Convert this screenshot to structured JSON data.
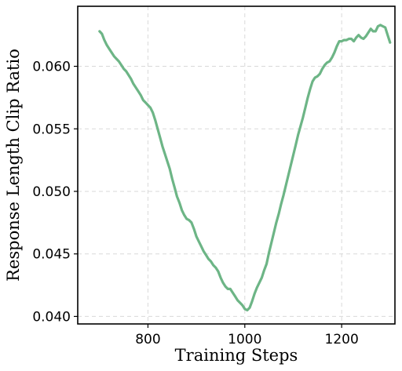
{
  "chart_data": {
    "type": "line",
    "title": "",
    "xlabel": "Training Steps",
    "ylabel": "Response Length Clip Ratio",
    "xlim": [
      655,
      1310
    ],
    "ylim": [
      0.0394,
      0.0648
    ],
    "xticks": [
      800,
      1000,
      1200
    ],
    "yticks": [
      0.04,
      0.045,
      0.05,
      0.055,
      0.06
    ],
    "xtick_labels": [
      "800",
      "1000",
      "1200"
    ],
    "ytick_labels": [
      "0.040",
      "0.045",
      "0.050",
      "0.055",
      "0.060"
    ],
    "grid": true,
    "color": "#6db586",
    "series": [
      {
        "name": "",
        "x": [
          700,
          705,
          710,
          715,
          720,
          725,
          730,
          735,
          740,
          745,
          750,
          755,
          760,
          765,
          770,
          775,
          780,
          785,
          790,
          795,
          800,
          805,
          810,
          815,
          820,
          825,
          830,
          835,
          840,
          845,
          850,
          855,
          860,
          865,
          870,
          875,
          880,
          885,
          890,
          895,
          900,
          905,
          910,
          915,
          920,
          925,
          930,
          935,
          940,
          945,
          950,
          955,
          960,
          965,
          970,
          975,
          980,
          985,
          990,
          995,
          1000,
          1005,
          1010,
          1015,
          1020,
          1025,
          1030,
          1035,
          1040,
          1045,
          1050,
          1055,
          1060,
          1065,
          1070,
          1075,
          1080,
          1085,
          1090,
          1095,
          1100,
          1105,
          1110,
          1115,
          1120,
          1125,
          1130,
          1135,
          1140,
          1145,
          1150,
          1155,
          1160,
          1165,
          1170,
          1175,
          1180,
          1185,
          1190,
          1195,
          1200,
          1205,
          1210,
          1215,
          1220,
          1225,
          1230,
          1235,
          1240,
          1245,
          1250,
          1255,
          1260,
          1265,
          1270,
          1275,
          1280,
          1285,
          1290,
          1295,
          1300
        ],
        "y": [
          0.0628,
          0.0626,
          0.0621,
          0.0617,
          0.0614,
          0.0611,
          0.0608,
          0.0606,
          0.0604,
          0.0601,
          0.0598,
          0.0596,
          0.0593,
          0.059,
          0.0586,
          0.0583,
          0.058,
          0.0577,
          0.0573,
          0.0571,
          0.0569,
          0.0567,
          0.0563,
          0.0557,
          0.055,
          0.0543,
          0.0536,
          0.053,
          0.0524,
          0.0518,
          0.051,
          0.0503,
          0.0496,
          0.0491,
          0.0485,
          0.0481,
          0.0478,
          0.0477,
          0.0475,
          0.047,
          0.0464,
          0.046,
          0.0456,
          0.0452,
          0.0449,
          0.0446,
          0.0444,
          0.0441,
          0.0439,
          0.0436,
          0.0431,
          0.0427,
          0.0424,
          0.0422,
          0.0422,
          0.0419,
          0.0416,
          0.0413,
          0.0411,
          0.0409,
          0.0406,
          0.0405,
          0.0407,
          0.0412,
          0.0418,
          0.0423,
          0.0427,
          0.0431,
          0.0437,
          0.0442,
          0.0451,
          0.0459,
          0.0467,
          0.0475,
          0.0482,
          0.049,
          0.0497,
          0.0505,
          0.0513,
          0.0521,
          0.0529,
          0.0537,
          0.0545,
          0.0552,
          0.0559,
          0.0567,
          0.0575,
          0.0582,
          0.0588,
          0.0591,
          0.0592,
          0.0594,
          0.0598,
          0.0601,
          0.0603,
          0.0604,
          0.0607,
          0.0611,
          0.0616,
          0.062,
          0.062,
          0.0621,
          0.0621,
          0.0622,
          0.0622,
          0.062,
          0.0623,
          0.0625,
          0.0623,
          0.0622,
          0.0624,
          0.0627,
          0.063,
          0.0628,
          0.0628,
          0.0632,
          0.0633,
          0.0632,
          0.0631,
          0.0625,
          0.0619
        ]
      }
    ]
  }
}
